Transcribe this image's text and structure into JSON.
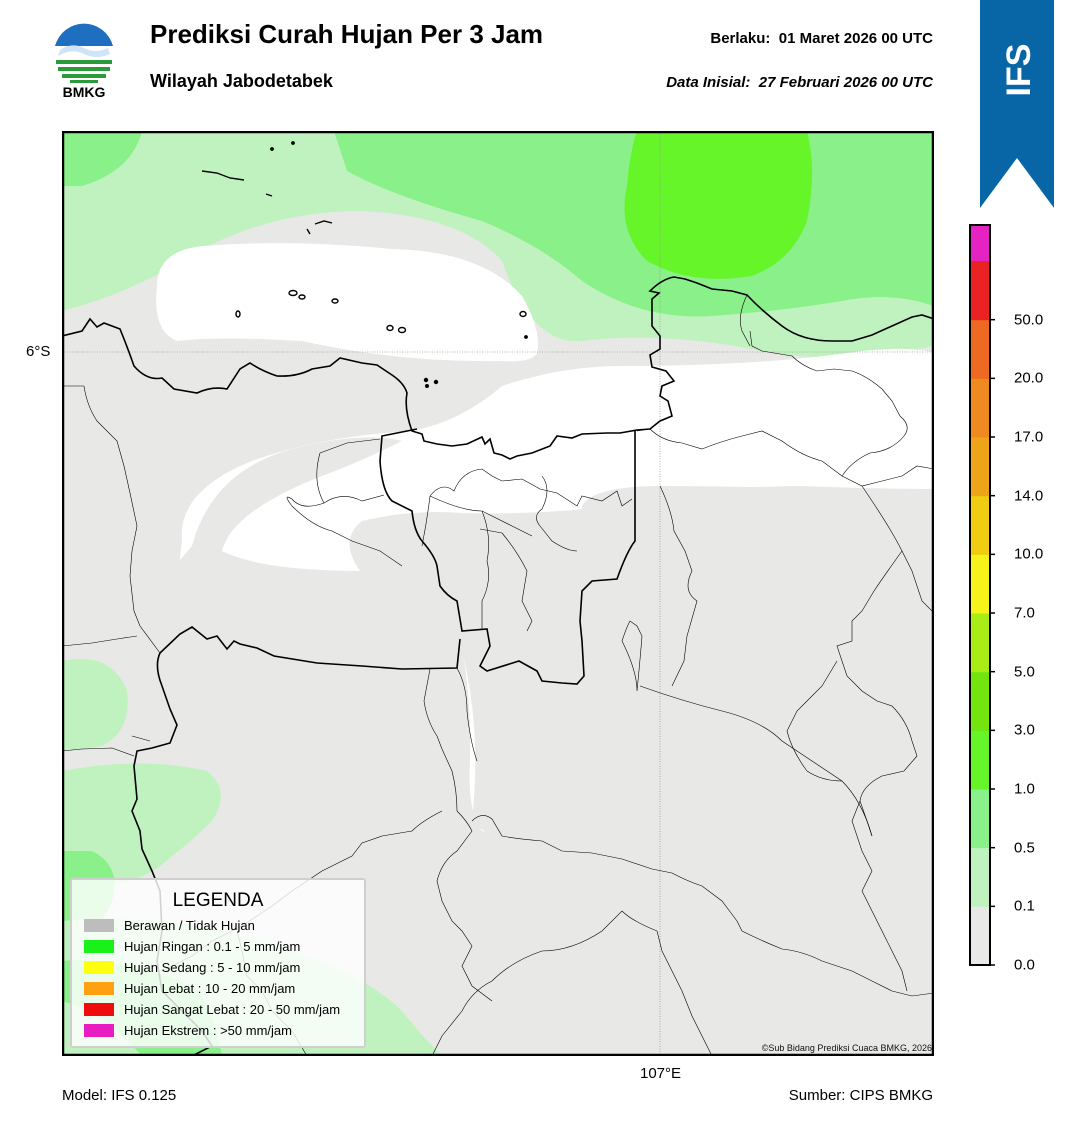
{
  "header": {
    "logo_text": "BMKG",
    "title": "Prediksi Curah Hujan Per 3 Jam",
    "subtitle": "Wilayah Jabodetabek",
    "valid_label": "Berlaku:",
    "valid_value": "01 Maret 2026 00 UTC",
    "init_label": "Data Inisial:",
    "init_value": "27 Februari 2026 00 UTC"
  },
  "badge": {
    "text": "IFS",
    "color": "#0866a7"
  },
  "map": {
    "lat_label": "6°S",
    "lon_label": "107°E",
    "copyright": "©Sub Bidang Prediksi Cuaca BMKG, 2026"
  },
  "footer": {
    "model": "Model: IFS 0.125",
    "source": "Sumber: CIPS BMKG"
  },
  "colorbar": {
    "tick_labels": [
      "0.0",
      "0.1",
      "0.5",
      "1.0",
      "3.0",
      "5.0",
      "7.0",
      "10.0",
      "14.0",
      "17.0",
      "20.0",
      "50.0"
    ],
    "colors": [
      "#e8e8e6",
      "#c0f2bf",
      "#8af089",
      "#65f529",
      "#74e40e",
      "#a9ec16",
      "#f5f31a",
      "#f0cc12",
      "#eea418",
      "#ee8a1f",
      "#ee6921",
      "#ea2223",
      "#e423c2"
    ]
  },
  "legend": {
    "title": "LEGENDA",
    "items": [
      {
        "label": "Berawan / Tidak Hujan",
        "color": "#bdbdbd"
      },
      {
        "label": "Hujan Ringan : 0.1 - 5 mm/jam",
        "color": "#18f218"
      },
      {
        "label": "Hujan Sedang : 5 - 10 mm/jam",
        "color": "#ffff10"
      },
      {
        "label": "Hujan Lebat : 10 - 20 mm/jam",
        "color": "#ffa010"
      },
      {
        "label": "Hujan Sangat Lebat : 20 - 50 mm/jam",
        "color": "#ee0c0c"
      },
      {
        "label": "Hujan Ekstrem : >50 mm/jam",
        "color": "#e81cc0"
      }
    ]
  }
}
